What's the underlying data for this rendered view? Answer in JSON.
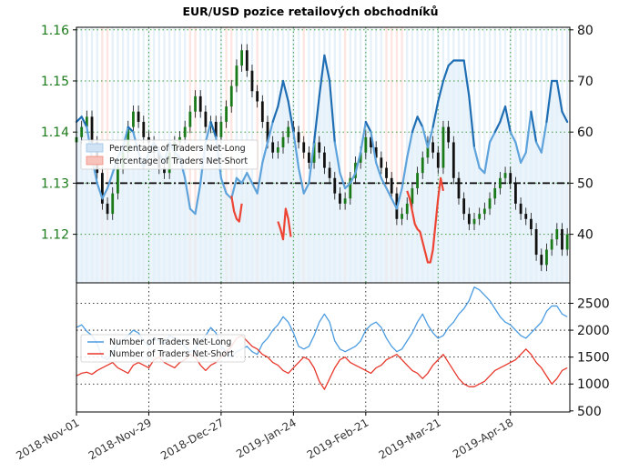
{
  "chart_data": [
    {
      "type": "line",
      "title": "EUR/USD pozice retailových obchodníků",
      "price_axis": {
        "ticks": [
          1.12,
          1.13,
          1.14,
          1.15,
          1.16
        ],
        "lim": [
          1.1105,
          1.1605
        ],
        "color": "#1a7a1a"
      },
      "percent_axis": {
        "ticks": [
          40,
          50,
          60,
          70,
          80
        ],
        "lim": [
          30.5,
          80.5
        ]
      },
      "x_axis": {
        "ticks": [
          "2018-Nov-01",
          "2018-Nov-29",
          "2018-Dec-27",
          "2019-Jan-24",
          "2019-Feb-21",
          "2019-Mar-21",
          "2019-Apr-18"
        ],
        "range_days": [
          0,
          191
        ]
      },
      "reference_line": {
        "value": 50,
        "style": "dash-dot"
      },
      "legend": {
        "placement": "upper-left",
        "entries": [
          "Percentage of Traders Net-Long",
          "Percentage of Traders Net-Short"
        ]
      },
      "colors": {
        "long_light": "#5ea3dc",
        "long_dark": "#1f6eb4",
        "short": "#ee4433",
        "long_fill": "#e3eff9",
        "short_fill": "#fde3df",
        "candle": "#1a7a1a"
      },
      "series": [
        {
          "name": "Percentage of Traders Net-Long",
          "x": [
            0,
            2,
            4,
            6,
            8,
            10,
            12,
            14,
            16,
            18,
            20,
            22,
            24,
            26,
            28,
            30,
            32,
            34,
            36,
            38,
            40,
            42,
            44,
            46,
            48,
            50,
            52,
            54,
            56,
            58,
            60,
            62,
            64,
            66,
            68,
            70,
            72,
            74,
            76,
            78,
            80,
            82,
            84,
            86,
            88,
            90,
            92,
            94,
            96,
            98,
            100,
            102,
            104,
            106,
            108,
            110,
            112,
            114,
            116,
            118,
            120,
            122,
            124,
            126,
            128,
            130,
            132,
            134,
            136,
            138,
            140,
            142,
            144,
            146,
            148,
            150,
            152,
            154,
            156,
            158,
            160,
            162,
            164,
            166,
            168,
            170,
            172,
            174,
            176,
            178,
            180,
            182,
            184,
            186,
            188,
            190
          ],
          "values": [
            62,
            63,
            61,
            55,
            50,
            47,
            49,
            52,
            55,
            57,
            61,
            60,
            56,
            53,
            56,
            58,
            56,
            54,
            58,
            56,
            55,
            51,
            45,
            44,
            50,
            58,
            62,
            59,
            51,
            48,
            47,
            51,
            50,
            52,
            50,
            48,
            54,
            58,
            62,
            65,
            70,
            66,
            60,
            53,
            48,
            50,
            58,
            67,
            75,
            70,
            58,
            52,
            49,
            50,
            52,
            56,
            62,
            60,
            54,
            51,
            49,
            47,
            45,
            49,
            55,
            60,
            63,
            61,
            57,
            61,
            66,
            70,
            73,
            74,
            74,
            74,
            67,
            57,
            53,
            52,
            58,
            60,
            62,
            65,
            60,
            58,
            54,
            56,
            64,
            58,
            56,
            62,
            70,
            70,
            64,
            62
          ]
        },
        {
          "name": "Percentage of Traders Net-Short",
          "x": [
            60,
            61,
            62,
            63,
            64,
            78,
            79,
            80,
            81,
            82,
            83,
            128,
            129,
            130,
            131,
            132,
            133,
            134,
            135,
            136,
            137,
            138,
            139,
            140,
            141,
            142
          ],
          "values": [
            47.5,
            44.5,
            43,
            42.5,
            46,
            42.5,
            41,
            39,
            45,
            43,
            39.5,
            48.5,
            47,
            44.5,
            42,
            41,
            40.5,
            38.5,
            36.5,
            34.5,
            34.5,
            37,
            42,
            47,
            51,
            48.5
          ]
        }
      ],
      "price_candles": {
        "x": [
          0,
          2,
          4,
          6,
          8,
          10,
          12,
          14,
          16,
          18,
          20,
          22,
          24,
          26,
          28,
          30,
          32,
          34,
          36,
          38,
          40,
          42,
          44,
          46,
          48,
          50,
          52,
          54,
          56,
          58,
          60,
          62,
          64,
          66,
          68,
          70,
          72,
          74,
          76,
          78,
          80,
          82,
          84,
          86,
          88,
          90,
          92,
          94,
          96,
          98,
          100,
          102,
          104,
          106,
          108,
          110,
          112,
          114,
          116,
          118,
          120,
          122,
          124,
          126,
          128,
          130,
          132,
          134,
          136,
          138,
          140,
          142,
          144,
          146,
          148,
          150,
          152,
          154,
          156,
          158,
          160,
          162,
          164,
          166,
          168,
          170,
          172,
          174,
          176,
          178,
          180,
          182,
          184,
          186,
          188,
          190
        ],
        "close": [
          1.139,
          1.141,
          1.143,
          1.138,
          1.132,
          1.126,
          1.124,
          1.128,
          1.133,
          1.136,
          1.141,
          1.144,
          1.142,
          1.139,
          1.138,
          1.136,
          1.133,
          1.132,
          1.136,
          1.138,
          1.139,
          1.141,
          1.144,
          1.147,
          1.144,
          1.141,
          1.142,
          1.139,
          1.142,
          1.145,
          1.149,
          1.153,
          1.156,
          1.152,
          1.148,
          1.146,
          1.142,
          1.138,
          1.136,
          1.137,
          1.139,
          1.141,
          1.14,
          1.138,
          1.136,
          1.134,
          1.138,
          1.136,
          1.133,
          1.131,
          1.128,
          1.126,
          1.127,
          1.131,
          1.134,
          1.136,
          1.139,
          1.137,
          1.135,
          1.133,
          1.131,
          1.128,
          1.123,
          1.124,
          1.126,
          1.129,
          1.132,
          1.135,
          1.138,
          1.136,
          1.133,
          1.141,
          1.138,
          1.131,
          1.127,
          1.124,
          1.122,
          1.123,
          1.124,
          1.125,
          1.127,
          1.129,
          1.131,
          1.132,
          1.13,
          1.126,
          1.124,
          1.123,
          1.121,
          1.116,
          1.114,
          1.117,
          1.119,
          1.121,
          1.117,
          1.12
        ]
      }
    },
    {
      "type": "line",
      "axis": {
        "ticks": [
          500,
          1000,
          1500,
          2000,
          2500
        ],
        "lim": [
          480,
          2880
        ]
      },
      "legend": {
        "placement": "upper-left",
        "entries": [
          "Number of Traders Net-Long",
          "Number of Traders Net-Short"
        ]
      },
      "colors": {
        "long": "#4a9be0",
        "short": "#e8372b"
      },
      "x": [
        0,
        2,
        4,
        6,
        8,
        10,
        12,
        14,
        16,
        18,
        20,
        22,
        24,
        26,
        28,
        30,
        32,
        34,
        36,
        38,
        40,
        42,
        44,
        46,
        48,
        50,
        52,
        54,
        56,
        58,
        60,
        62,
        64,
        66,
        68,
        70,
        72,
        74,
        76,
        78,
        80,
        82,
        84,
        86,
        88,
        90,
        92,
        94,
        96,
        98,
        100,
        102,
        104,
        106,
        108,
        110,
        112,
        114,
        116,
        118,
        120,
        122,
        124,
        126,
        128,
        130,
        132,
        134,
        136,
        138,
        140,
        142,
        144,
        146,
        148,
        150,
        152,
        154,
        156,
        158,
        160,
        162,
        164,
        166,
        168,
        170,
        172,
        174,
        176,
        178,
        180,
        182,
        184,
        186,
        188,
        190
      ],
      "series": [
        {
          "name": "Number of Traders Net-Long",
          "values": [
            2050,
            2100,
            1980,
            1900,
            1750,
            1500,
            1450,
            1600,
            1750,
            1800,
            1900,
            2000,
            1950,
            1800,
            1700,
            1850,
            1800,
            1750,
            1900,
            1850,
            1800,
            1700,
            1600,
            1650,
            1800,
            1900,
            2050,
            1950,
            1700,
            1600,
            1500,
            1600,
            1650,
            1700,
            1600,
            1550,
            1750,
            1850,
            2000,
            2100,
            2250,
            2150,
            1950,
            1700,
            1650,
            1700,
            1900,
            2150,
            2300,
            2150,
            1800,
            1650,
            1600,
            1650,
            1700,
            1800,
            2000,
            2100,
            2150,
            2050,
            1850,
            1700,
            1600,
            1650,
            1800,
            1950,
            2150,
            2300,
            2100,
            1950,
            1850,
            1900,
            2050,
            2150,
            2300,
            2400,
            2550,
            2800,
            2750,
            2650,
            2550,
            2400,
            2250,
            2150,
            2100,
            2000,
            1900,
            1850,
            1950,
            2050,
            2150,
            2350,
            2450,
            2450,
            2300,
            2250
          ]
        },
        {
          "name": "Number of Traders Net-Short",
          "values": [
            1150,
            1200,
            1220,
            1180,
            1250,
            1300,
            1350,
            1400,
            1300,
            1250,
            1200,
            1350,
            1400,
            1350,
            1300,
            1450,
            1500,
            1400,
            1350,
            1300,
            1400,
            1450,
            1550,
            1500,
            1350,
            1250,
            1350,
            1400,
            1500,
            1600,
            1700,
            1850,
            1900,
            1800,
            1700,
            1650,
            1550,
            1500,
            1400,
            1350,
            1250,
            1200,
            1300,
            1400,
            1500,
            1450,
            1300,
            1050,
            900,
            1100,
            1300,
            1450,
            1500,
            1400,
            1350,
            1300,
            1250,
            1200,
            1300,
            1350,
            1450,
            1500,
            1550,
            1450,
            1350,
            1250,
            1200,
            1100,
            1200,
            1350,
            1450,
            1550,
            1400,
            1250,
            1100,
            1000,
            950,
            950,
            1000,
            1050,
            1150,
            1250,
            1300,
            1350,
            1400,
            1450,
            1550,
            1650,
            1550,
            1400,
            1300,
            1150,
            1000,
            1100,
            1250,
            1300
          ]
        }
      ]
    }
  ]
}
